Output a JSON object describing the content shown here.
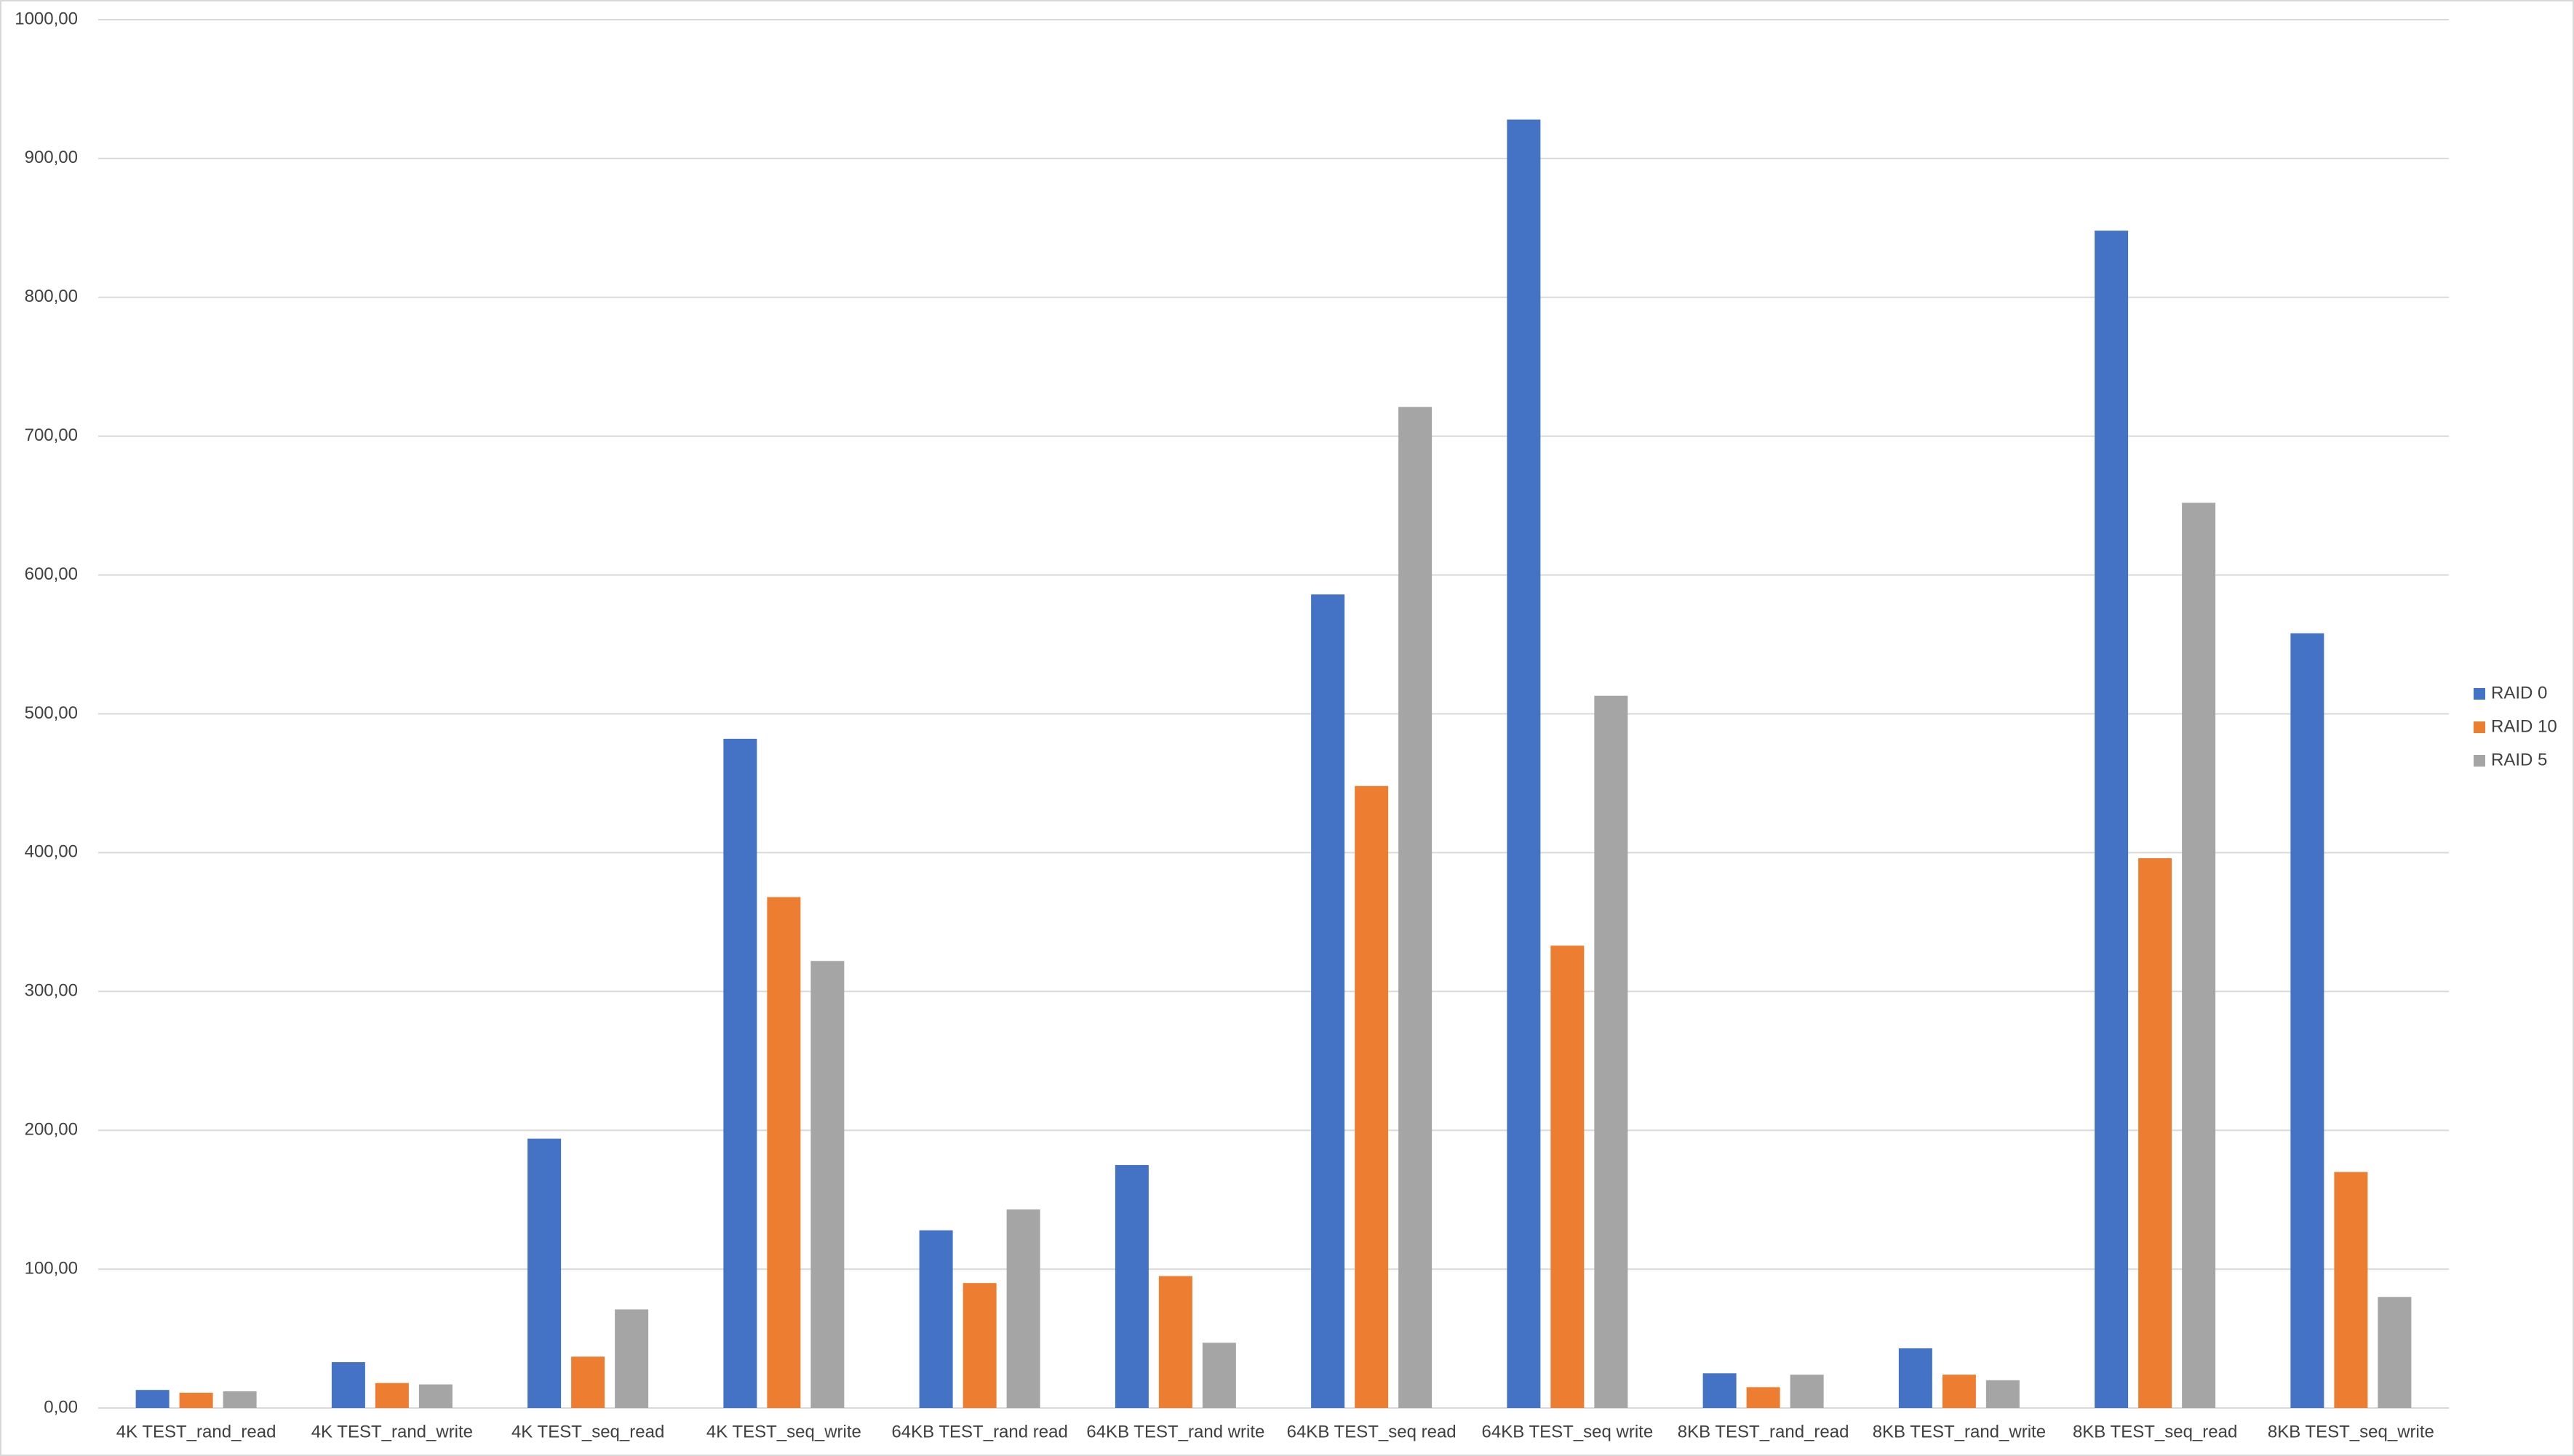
{
  "chart_data": {
    "type": "bar",
    "categories": [
      "4K TEST_rand_read",
      "4K TEST_rand_write",
      "4K TEST_seq_read",
      "4K TEST_seq_write",
      "64KB TEST_rand read",
      "64KB TEST_rand write",
      "64KB TEST_seq read",
      "64KB TEST_seq write",
      "8KB TEST_rand_read",
      "8KB TEST_rand_write",
      "8KB TEST_seq_read",
      "8KB TEST_seq_write"
    ],
    "series": [
      {
        "name": "RAID 0",
        "color": "#4472c4",
        "values": [
          13,
          33,
          194,
          482,
          128,
          175,
          586,
          928,
          25,
          43,
          848,
          558
        ]
      },
      {
        "name": "RAID 10",
        "color": "#ed7d31",
        "values": [
          11,
          18,
          37,
          368,
          90,
          95,
          448,
          333,
          15,
          24,
          396,
          170
        ]
      },
      {
        "name": "RAID 5",
        "color": "#a5a5a5",
        "values": [
          12,
          17,
          71,
          322,
          143,
          47,
          721,
          513,
          24,
          20,
          652,
          80
        ]
      }
    ],
    "ylim": [
      0,
      1000
    ],
    "yticks": [
      {
        "value": 0,
        "label": "0,00"
      },
      {
        "value": 100,
        "label": "100,00"
      },
      {
        "value": 200,
        "label": "200,00"
      },
      {
        "value": 300,
        "label": "300,00"
      },
      {
        "value": 400,
        "label": "400,00"
      },
      {
        "value": 500,
        "label": "500,00"
      },
      {
        "value": 600,
        "label": "600,00"
      },
      {
        "value": 700,
        "label": "700,00"
      },
      {
        "value": 800,
        "label": "800,00"
      },
      {
        "value": 900,
        "label": "900,00"
      },
      {
        "value": 1000,
        "label": "1000,00"
      }
    ],
    "grid": true,
    "legend": "right"
  }
}
